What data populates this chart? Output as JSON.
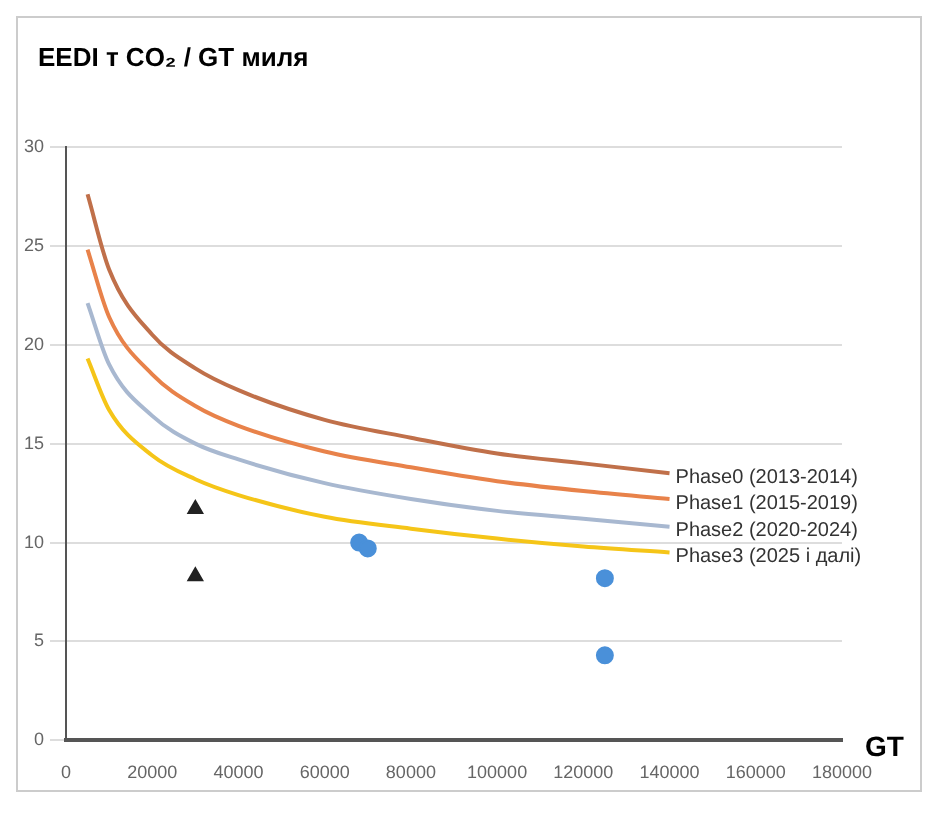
{
  "chart_data": {
    "type": "line",
    "ylabel": "EEDI   т CO₂ / GT миля",
    "xlabel": "GT",
    "xlim": [
      0,
      180000
    ],
    "xticks": [
      0,
      20000,
      40000,
      60000,
      80000,
      100000,
      120000,
      140000,
      160000,
      180000
    ],
    "ylim": [
      0,
      30
    ],
    "yticks": [
      0,
      5,
      10,
      15,
      20,
      25,
      30
    ],
    "grid": "y",
    "legend": false,
    "series": [
      {
        "name": "Phase0 (2013-2014)",
        "color": "#c0704a",
        "marker": "none",
        "x": [
          5000,
          10000,
          20000,
          30000,
          40000,
          60000,
          80000,
          100000,
          120000,
          140000
        ],
        "values": [
          27.6,
          23.8,
          20.5,
          18.8,
          17.7,
          16.2,
          15.3,
          14.5,
          14.0,
          13.5
        ]
      },
      {
        "name": "Phase1 (2015-2019)",
        "color": "#e8824a",
        "marker": "none",
        "x": [
          5000,
          10000,
          20000,
          30000,
          40000,
          60000,
          80000,
          100000,
          120000,
          140000
        ],
        "values": [
          24.8,
          21.4,
          18.5,
          16.9,
          15.9,
          14.6,
          13.8,
          13.1,
          12.6,
          12.2
        ]
      },
      {
        "name": "Phase2 (2020-2024)",
        "color": "#a8b8d0",
        "marker": "none",
        "x": [
          5000,
          10000,
          20000,
          30000,
          40000,
          60000,
          80000,
          100000,
          120000,
          140000
        ],
        "values": [
          22.1,
          19.0,
          16.4,
          15.0,
          14.2,
          13.0,
          12.2,
          11.6,
          11.2,
          10.8
        ]
      },
      {
        "name": "Phase3 (2025 і далі)",
        "color": "#f5c518",
        "marker": "none",
        "x": [
          5000,
          10000,
          20000,
          30000,
          40000,
          60000,
          80000,
          100000,
          120000,
          140000
        ],
        "values": [
          19.3,
          16.7,
          14.4,
          13.2,
          12.4,
          11.3,
          10.7,
          10.2,
          9.8,
          9.5
        ]
      },
      {
        "type": "scatter",
        "color": "#222222",
        "marker": "triangle",
        "x": [
          30000,
          30000
        ],
        "values": [
          11.7,
          8.3
        ]
      },
      {
        "type": "scatter",
        "color": "#4a90d9",
        "marker": "circle",
        "x": [
          68000,
          70000,
          125000,
          125000
        ],
        "values": [
          10.0,
          9.7,
          8.2,
          4.3
        ]
      }
    ]
  }
}
